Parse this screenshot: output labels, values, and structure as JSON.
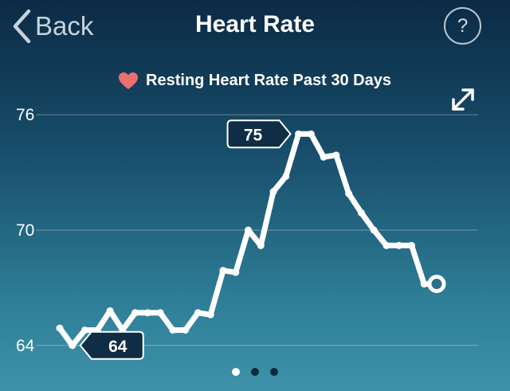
{
  "header": {
    "back_label": "Back",
    "title": "Heart Rate",
    "help_label": "?"
  },
  "subtitle": "Resting Heart Rate Past 30 Days",
  "icons": {
    "back": "chevron-left-icon",
    "heart": "heart-icon",
    "expand": "expand-arrows-icon"
  },
  "colors": {
    "heart": "#ee6f6f",
    "line": "#ffffff",
    "badge_bg": "#0f2d44"
  },
  "chart_data": {
    "type": "line",
    "title": "Resting Heart Rate Past 30 Days",
    "yticks": [
      76,
      70,
      64
    ],
    "ylim": [
      62.5,
      77
    ],
    "xlim": [
      0,
      31
    ],
    "grid": true,
    "values": [
      64.9,
      64.0,
      64.8,
      64.8,
      65.8,
      64.8,
      65.7,
      65.7,
      65.7,
      64.8,
      64.8,
      65.7,
      65.6,
      67.9,
      67.8,
      70.0,
      69.2,
      72.0,
      72.8,
      75.0,
      75.0,
      73.8,
      73.9,
      71.9,
      70.9,
      70.0,
      69.2,
      69.2,
      69.2,
      67.2,
      67.2
    ],
    "min_label": "64",
    "max_label": "75"
  },
  "pager": {
    "count": 3,
    "active": 0
  }
}
